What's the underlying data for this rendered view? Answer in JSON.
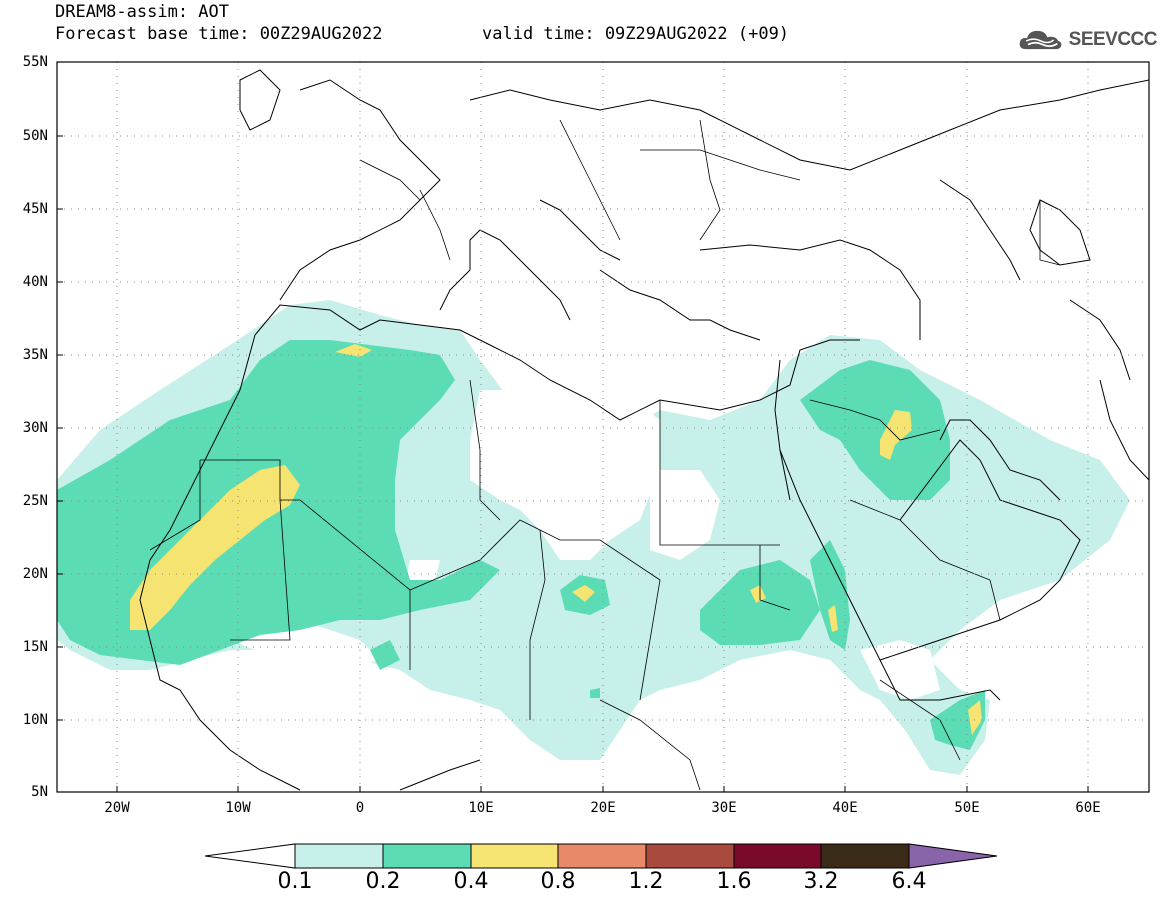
{
  "title": {
    "line1": "DREAM8-assim: AOT",
    "base_time": "Forecast base time: 00Z29AUG2022",
    "valid_time": "valid time: 09Z29AUG2022 (+09)"
  },
  "logo": {
    "text": "SEEVCCC",
    "icon": "cloud-icon"
  },
  "map": {
    "lat_labels": [
      "55N",
      "50N",
      "45N",
      "40N",
      "35N",
      "30N",
      "25N",
      "20N",
      "15N",
      "10N",
      "5N"
    ],
    "lon_labels": [
      "20W",
      "10W",
      "0",
      "10E",
      "20E",
      "30E",
      "40E",
      "50E",
      "60E"
    ],
    "lat_range": [
      5,
      55
    ],
    "lon_range": [
      -25,
      65
    ],
    "grid": "dotted"
  },
  "colorbar": {
    "labels": [
      "0.1",
      "0.2",
      "0.4",
      "0.8",
      "1.2",
      "1.6",
      "3.2",
      "6.4"
    ],
    "colors": [
      "#ffffff",
      "#c8f0ea",
      "#5bdcb4",
      "#f5e372",
      "#e8896a",
      "#a84a3e",
      "#7a0a2a",
      "#3a2a18",
      "#8a64a8"
    ]
  }
}
